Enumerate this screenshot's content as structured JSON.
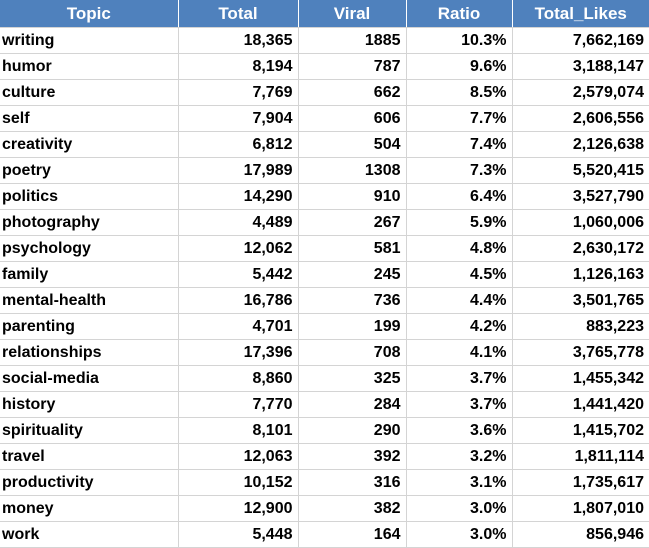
{
  "table": {
    "headers": [
      "Topic",
      "Total",
      "Viral",
      "Ratio",
      "Total_Likes"
    ],
    "rows": [
      [
        "writing",
        "18,365",
        "1885",
        "10.3%",
        "7,662,169"
      ],
      [
        "humor",
        "8,194",
        "787",
        "9.6%",
        "3,188,147"
      ],
      [
        "culture",
        "7,769",
        "662",
        "8.5%",
        "2,579,074"
      ],
      [
        "self",
        "7,904",
        "606",
        "7.7%",
        "2,606,556"
      ],
      [
        "creativity",
        "6,812",
        "504",
        "7.4%",
        "2,126,638"
      ],
      [
        "poetry",
        "17,989",
        "1308",
        "7.3%",
        "5,520,415"
      ],
      [
        "politics",
        "14,290",
        "910",
        "6.4%",
        "3,527,790"
      ],
      [
        "photography",
        "4,489",
        "267",
        "5.9%",
        "1,060,006"
      ],
      [
        "psychology",
        "12,062",
        "581",
        "4.8%",
        "2,630,172"
      ],
      [
        "family",
        "5,442",
        "245",
        "4.5%",
        "1,126,163"
      ],
      [
        "mental-health",
        "16,786",
        "736",
        "4.4%",
        "3,501,765"
      ],
      [
        "parenting",
        "4,701",
        "199",
        "4.2%",
        "883,223"
      ],
      [
        "relationships",
        "17,396",
        "708",
        "4.1%",
        "3,765,778"
      ],
      [
        "social-media",
        "8,860",
        "325",
        "3.7%",
        "1,455,342"
      ],
      [
        "history",
        "7,770",
        "284",
        "3.7%",
        "1,441,420"
      ],
      [
        "spirituality",
        "8,101",
        "290",
        "3.6%",
        "1,415,702"
      ],
      [
        "travel",
        "12,063",
        "392",
        "3.2%",
        "1,811,114"
      ],
      [
        "productivity",
        "10,152",
        "316",
        "3.1%",
        "1,735,617"
      ],
      [
        "money",
        "12,900",
        "382",
        "3.0%",
        "1,807,010"
      ],
      [
        "work",
        "5,448",
        "164",
        "3.0%",
        "856,946"
      ]
    ]
  },
  "colors": {
    "header_bg": "#4f81bd",
    "header_text": "#ffffff",
    "grid": "#d4d4d4"
  }
}
